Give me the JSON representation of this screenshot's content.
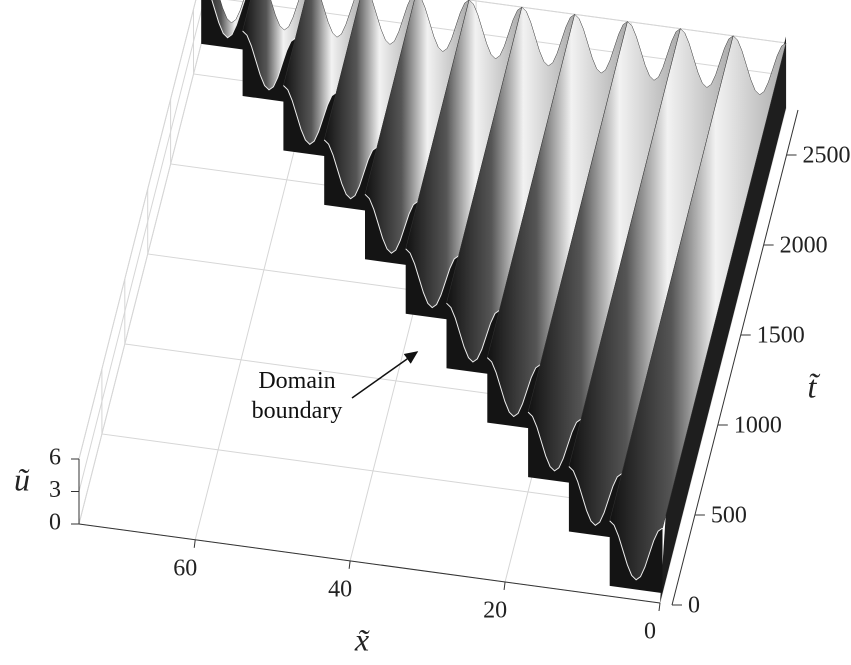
{
  "chart_data": {
    "type": "surface3d",
    "xlabel": "x̃",
    "ylabel": "t̃",
    "zlabel": "ũ",
    "xlim": [
      0,
      75
    ],
    "xticks": [
      0,
      20,
      40,
      60
    ],
    "ylim": [
      0,
      2750
    ],
    "yticks": [
      0,
      500,
      1000,
      1500,
      2000,
      2500
    ],
    "zlim": [
      0,
      6
    ],
    "zticks": [
      0,
      3,
      6
    ],
    "annotation": "Domain boundary",
    "colormap": "gray",
    "grid": true
  }
}
